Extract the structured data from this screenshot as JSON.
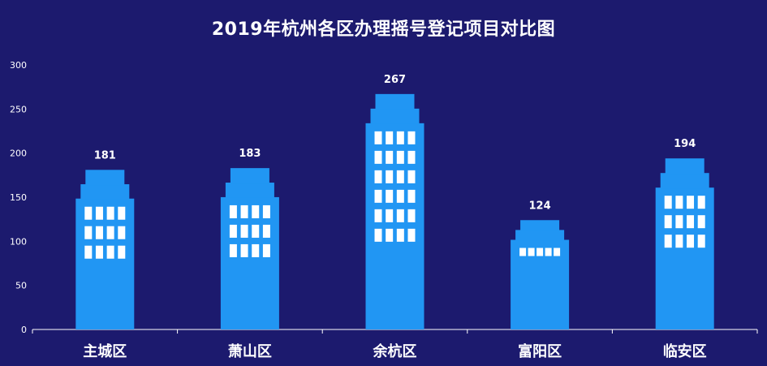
{
  "chart_data": {
    "type": "bar",
    "title": "2019年杭州各区办理摇号登记项目对比图",
    "xlabel": "",
    "ylabel": "",
    "categories": [
      "主城区",
      "萧山区",
      "余杭区",
      "富阳区",
      "临安区"
    ],
    "values": [
      181,
      183,
      267,
      124,
      194
    ],
    "ylim": [
      0,
      300
    ],
    "yticks": [
      0,
      50,
      100,
      150,
      200,
      250,
      300
    ],
    "grid": false,
    "legend": "none",
    "bar_style": "building"
  },
  "colors": {
    "background": "#1c1a6e",
    "bar": "#2196f3",
    "window": "#ffffff",
    "text": "#ffffff",
    "axis": "#ffffff"
  }
}
